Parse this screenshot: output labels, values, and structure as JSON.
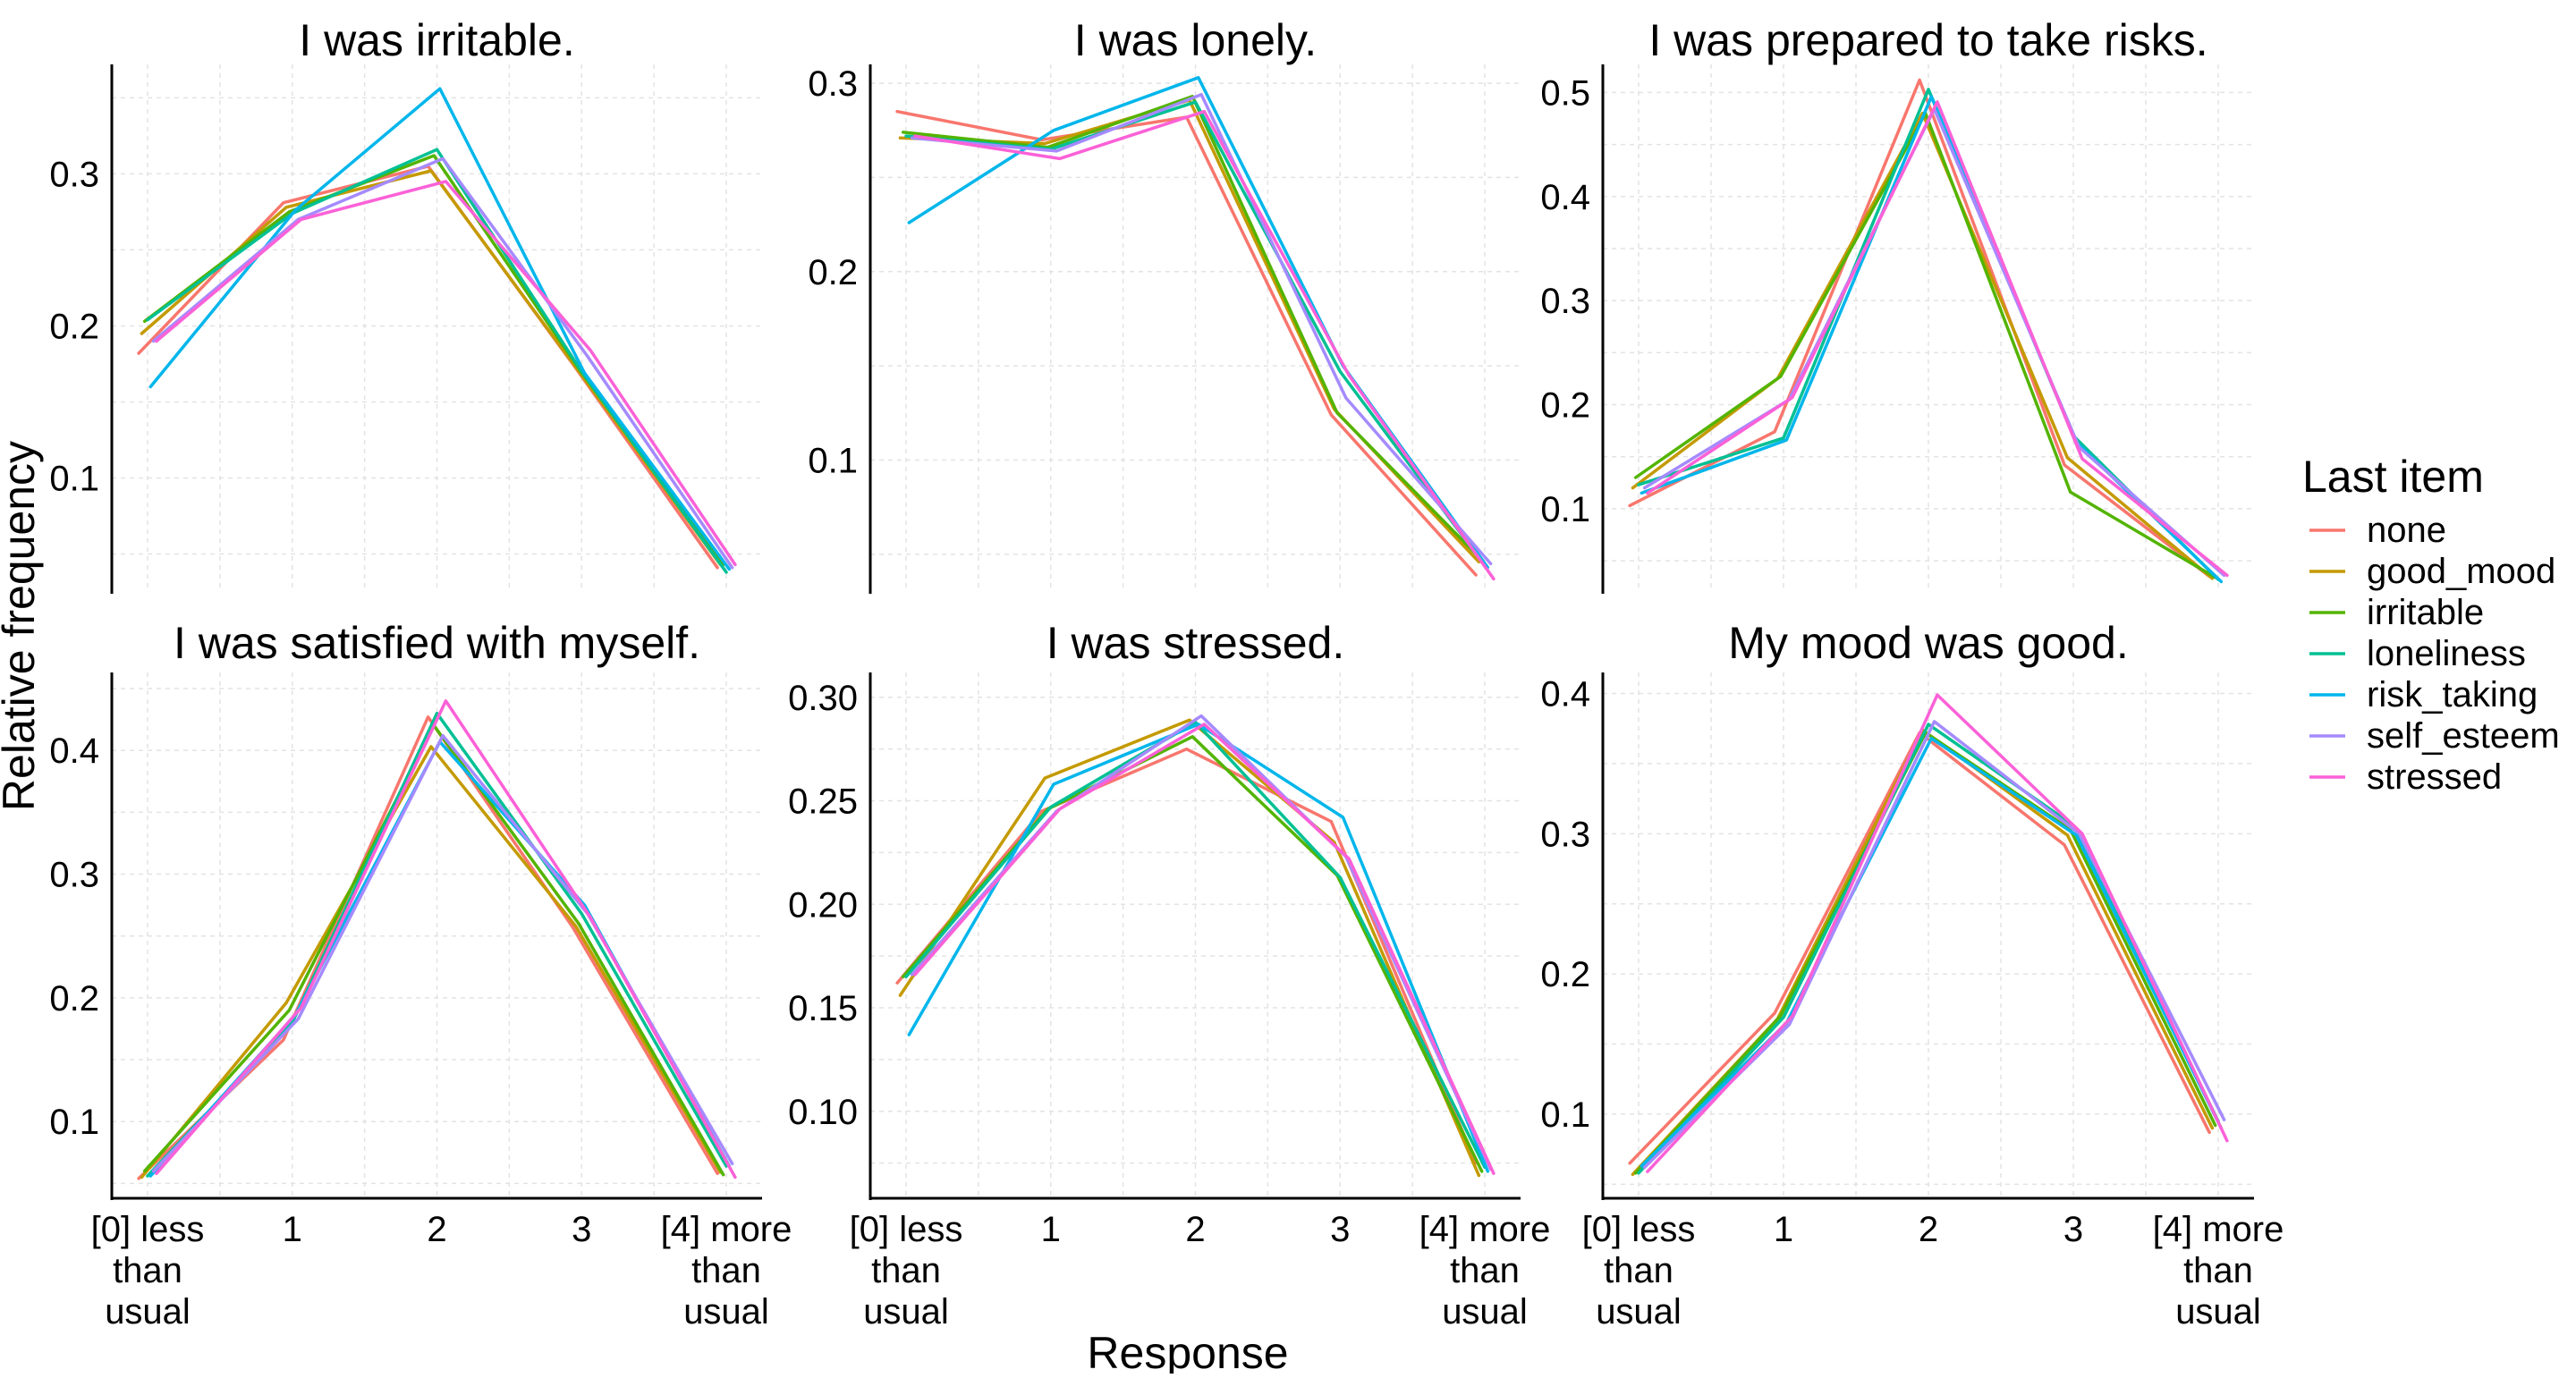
{
  "chart_data": {
    "type": "line",
    "xlabel": "Response",
    "ylabel": "Relative frequency",
    "categories": [
      [
        "[0] less",
        "than",
        "usual"
      ],
      [
        "1"
      ],
      [
        "2"
      ],
      [
        "3"
      ],
      [
        "[4] more",
        "than",
        "usual"
      ]
    ],
    "grid": true,
    "legend": {
      "title": "Last item",
      "position": "right",
      "items": [
        {
          "name": "none",
          "color": "#F8766D"
        },
        {
          "name": "good_mood",
          "color": "#C49A00"
        },
        {
          "name": "irritable",
          "color": "#53B400"
        },
        {
          "name": "loneliness",
          "color": "#00C094"
        },
        {
          "name": "risk_taking",
          "color": "#00B6EB"
        },
        {
          "name": "self_esteem",
          "color": "#A58AFF"
        },
        {
          "name": "stressed",
          "color": "#FB61D7"
        }
      ]
    },
    "panels": [
      {
        "title": "I was irritable.",
        "ylim": [
          0.025,
          0.372
        ],
        "yticks": [
          0.1,
          0.2,
          0.3
        ],
        "ytick_labels": [
          "0.1",
          "0.2",
          "0.3"
        ],
        "series": [
          {
            "name": "none",
            "values": [
              0.182,
              0.281,
              0.305,
              0.175,
              0.041
            ]
          },
          {
            "name": "good_mood",
            "values": [
              0.195,
              0.278,
              0.302,
              0.173,
              0.043
            ]
          },
          {
            "name": "irritable",
            "values": [
              0.203,
              0.275,
              0.312,
              0.172,
              0.043
            ]
          },
          {
            "name": "loneliness",
            "values": [
              0.204,
              0.274,
              0.316,
              0.17,
              0.038
            ]
          },
          {
            "name": "risk_taking",
            "values": [
              0.16,
              0.276,
              0.356,
              0.169,
              0.04
            ]
          },
          {
            "name": "self_esteem",
            "values": [
              0.19,
              0.27,
              0.31,
              0.18,
              0.041
            ]
          },
          {
            "name": "stressed",
            "values": [
              0.19,
              0.27,
              0.295,
              0.184,
              0.043
            ]
          }
        ]
      },
      {
        "title": "I was lonely.",
        "ylim": [
          0.03,
          0.31
        ],
        "yticks": [
          0.1,
          0.2,
          0.3
        ],
        "ytick_labels": [
          "0.1",
          "0.2",
          "0.3"
        ],
        "series": [
          {
            "name": "none",
            "values": [
              0.285,
              0.27,
              0.282,
              0.124,
              0.039
            ]
          },
          {
            "name": "good_mood",
            "values": [
              0.271,
              0.268,
              0.291,
              0.127,
              0.046
            ]
          },
          {
            "name": "irritable",
            "values": [
              0.274,
              0.266,
              0.293,
              0.125,
              0.047
            ]
          },
          {
            "name": "loneliness",
            "values": [
              0.272,
              0.265,
              0.29,
              0.147,
              0.044
            ]
          },
          {
            "name": "risk_taking",
            "values": [
              0.226,
              0.275,
              0.303,
              0.15,
              0.043
            ]
          },
          {
            "name": "self_esteem",
            "values": [
              0.271,
              0.264,
              0.294,
              0.133,
              0.045
            ]
          },
          {
            "name": "stressed",
            "values": [
              0.272,
              0.26,
              0.285,
              0.145,
              0.037
            ]
          }
        ]
      },
      {
        "title": "I was prepared to take risks.",
        "ylim": [
          0.02,
          0.527
        ],
        "yticks": [
          0.1,
          0.2,
          0.3,
          0.4,
          0.5
        ],
        "ytick_labels": [
          "0.1",
          "0.2",
          "0.3",
          "0.4",
          "0.5"
        ],
        "series": [
          {
            "name": "none",
            "values": [
              0.103,
              0.174,
              0.512,
              0.142,
              0.035
            ]
          },
          {
            "name": "good_mood",
            "values": [
              0.12,
              0.225,
              0.48,
              0.149,
              0.033
            ]
          },
          {
            "name": "irritable",
            "values": [
              0.13,
              0.227,
              0.48,
              0.116,
              0.034
            ]
          },
          {
            "name": "loneliness",
            "values": [
              0.123,
              0.168,
              0.503,
              0.17,
              0.032
            ]
          },
          {
            "name": "risk_taking",
            "values": [
              0.115,
              0.166,
              0.496,
              0.164,
              0.03
            ]
          },
          {
            "name": "self_esteem",
            "values": [
              0.12,
              0.205,
              0.484,
              0.159,
              0.036
            ]
          },
          {
            "name": "stressed",
            "values": [
              0.115,
              0.207,
              0.491,
              0.148,
              0.036
            ]
          }
        ]
      },
      {
        "title": "I was satisfied with myself.",
        "ylim": [
          0.038,
          0.463
        ],
        "yticks": [
          0.1,
          0.2,
          0.3,
          0.4
        ],
        "ytick_labels": [
          "0.1",
          "0.2",
          "0.3",
          "0.4"
        ],
        "series": [
          {
            "name": "none",
            "values": [
              0.054,
              0.166,
              0.427,
              0.257,
              0.058
            ]
          },
          {
            "name": "good_mood",
            "values": [
              0.055,
              0.196,
              0.403,
              0.258,
              0.059
            ]
          },
          {
            "name": "irritable",
            "values": [
              0.06,
              0.19,
              0.42,
              0.26,
              0.057
            ]
          },
          {
            "name": "loneliness",
            "values": [
              0.056,
              0.18,
              0.43,
              0.268,
              0.064
            ]
          },
          {
            "name": "risk_taking",
            "values": [
              0.056,
              0.186,
              0.407,
              0.275,
              0.064
            ]
          },
          {
            "name": "self_esteem",
            "values": [
              0.06,
              0.183,
              0.412,
              0.268,
              0.066
            ]
          },
          {
            "name": "stressed",
            "values": [
              0.058,
              0.192,
              0.44,
              0.265,
              0.055
            ]
          }
        ]
      },
      {
        "title": "I was stressed.",
        "ylim": [
          0.058,
          0.312
        ],
        "yticks": [
          0.1,
          0.15,
          0.2,
          0.25,
          0.3
        ],
        "ytick_labels": [
          "0.10",
          "0.15",
          "0.20",
          "0.25",
          "0.30"
        ],
        "series": [
          {
            "name": "none",
            "values": [
              0.162,
              0.245,
              0.275,
              0.24,
              0.075
            ]
          },
          {
            "name": "good_mood",
            "values": [
              0.156,
              0.261,
              0.289,
              0.23,
              0.069
            ]
          },
          {
            "name": "irritable",
            "values": [
              0.165,
              0.246,
              0.281,
              0.214,
              0.071
            ]
          },
          {
            "name": "loneliness",
            "values": [
              0.165,
              0.247,
              0.288,
              0.213,
              0.073
            ]
          },
          {
            "name": "risk_taking",
            "values": [
              0.137,
              0.258,
              0.287,
              0.242,
              0.071
            ]
          },
          {
            "name": "self_esteem",
            "values": [
              0.166,
              0.245,
              0.291,
              0.223,
              0.072
            ]
          },
          {
            "name": "stressed",
            "values": [
              0.166,
              0.246,
              0.287,
              0.222,
              0.07
            ]
          }
        ]
      },
      {
        "title": "My mood was good.",
        "ylim": [
          0.04,
          0.415
        ],
        "yticks": [
          0.1,
          0.2,
          0.3,
          0.4
        ],
        "ytick_labels": [
          "0.1",
          "0.2",
          "0.3",
          "0.4"
        ],
        "series": [
          {
            "name": "none",
            "values": [
              0.065,
              0.172,
              0.372,
              0.292,
              0.087
            ]
          },
          {
            "name": "good_mood",
            "values": [
              0.057,
              0.168,
              0.374,
              0.299,
              0.09
            ]
          },
          {
            "name": "irritable",
            "values": [
              0.058,
              0.17,
              0.372,
              0.303,
              0.092
            ]
          },
          {
            "name": "loneliness",
            "values": [
              0.058,
              0.169,
              0.378,
              0.306,
              0.095
            ]
          },
          {
            "name": "risk_taking",
            "values": [
              0.063,
              0.165,
              0.368,
              0.299,
              0.09
            ]
          },
          {
            "name": "self_esteem",
            "values": [
              0.062,
              0.164,
              0.38,
              0.3,
              0.096
            ]
          },
          {
            "name": "stressed",
            "values": [
              0.059,
              0.17,
              0.399,
              0.3,
              0.081
            ]
          }
        ]
      }
    ]
  }
}
